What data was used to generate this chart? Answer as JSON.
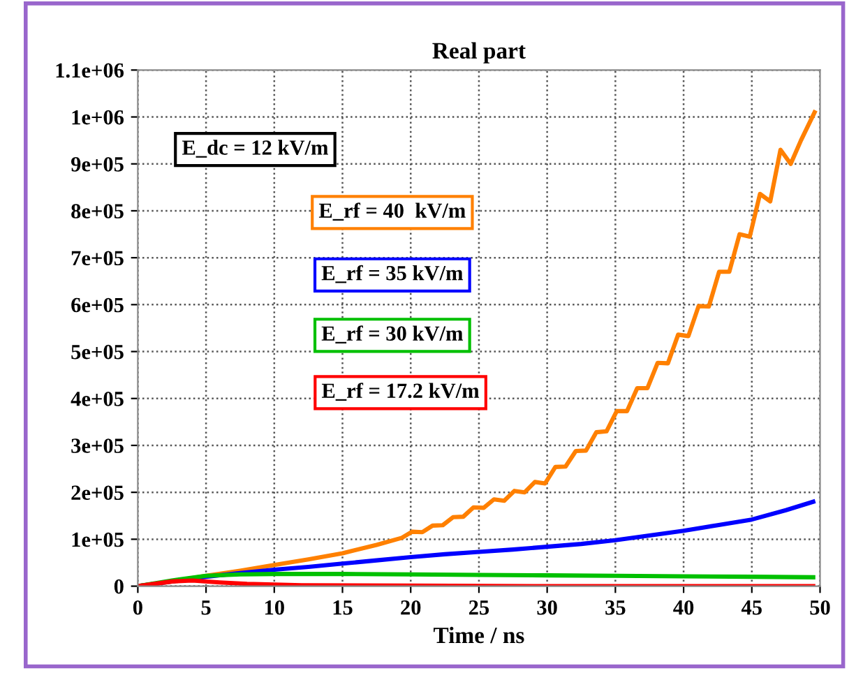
{
  "chart_data": {
    "type": "line",
    "title": "Real part",
    "xlabel": "Time / ns",
    "xlim": [
      0,
      50
    ],
    "xticks": [
      0,
      5,
      10,
      15,
      20,
      25,
      30,
      35,
      40,
      45,
      50
    ],
    "ylim": [
      0,
      1100000
    ],
    "yticks": [
      0,
      {
        "value": 100000,
        "label": "1e+05"
      },
      {
        "value": 200000,
        "label": "2e+05"
      },
      {
        "value": 300000,
        "label": "3e+05"
      },
      {
        "value": 400000,
        "label": "4e+05"
      },
      {
        "value": 500000,
        "label": "5e+05"
      },
      {
        "value": 600000,
        "label": "6e+05"
      },
      {
        "value": 700000,
        "label": "7e+05"
      },
      {
        "value": 800000,
        "label": "8e+05"
      },
      {
        "value": 900000,
        "label": "9e+05"
      },
      {
        "value": 1000000,
        "label": "1e+06"
      },
      {
        "value": 1100000,
        "label": "1.1e+06"
      }
    ],
    "grid": true,
    "line_style": "solid",
    "annotations": [
      "E_dc = 12 kV/m"
    ],
    "series": [
      {
        "name": "E_rf = 40  kV/m",
        "color": "#ff8000",
        "x": [
          0,
          2.5,
          5,
          7.5,
          10,
          12.5,
          15,
          17.5,
          19.35,
          20.1,
          20.85,
          21.6,
          22.35,
          23.1,
          23.85,
          24.6,
          25.35,
          26.1,
          26.85,
          27.6,
          28.35,
          29.1,
          29.85,
          30.6,
          31.35,
          32.1,
          32.85,
          33.6,
          34.35,
          35.1,
          35.85,
          36.6,
          37.35,
          38.1,
          38.85,
          39.6,
          40.35,
          41.1,
          41.85,
          42.6,
          43.35,
          44.1,
          44.85,
          45.6,
          46.35,
          47.1,
          47.85,
          48.6,
          49.6
        ],
        "values": [
          0,
          10000,
          22000,
          33000,
          45000,
          57000,
          70000,
          88000,
          103000,
          116000,
          115000,
          129000,
          130000,
          147000,
          148000,
          168000,
          167000,
          185000,
          182000,
          203000,
          200000,
          222000,
          219000,
          254000,
          255000,
          288000,
          289000,
          328000,
          330000,
          373000,
          373000,
          422000,
          422000,
          476000,
          475000,
          536000,
          533000,
          597000,
          596000,
          670000,
          670000,
          750000,
          745000,
          836000,
          820000,
          930000,
          900000,
          950000,
          1010000
        ]
      },
      {
        "name": "E_rf = 35 kV/m",
        "color": "#0000ff",
        "x": [
          0,
          5,
          7.5,
          10,
          12.5,
          15,
          17.5,
          20,
          22.5,
          25,
          27.5,
          30,
          32.5,
          35,
          37.5,
          40,
          42.5,
          45,
          47.5,
          49.5
        ],
        "values": [
          0,
          20000,
          28000,
          35000,
          41000,
          48000,
          55000,
          62000,
          68000,
          73000,
          78000,
          84000,
          90000,
          98000,
          108000,
          118000,
          130000,
          142000,
          162000,
          180000
        ]
      },
      {
        "name": "E_rf = 30 kV/m",
        "color": "#00c000",
        "x": [
          0,
          2.5,
          5,
          7.5,
          10,
          15,
          20,
          25,
          30,
          35,
          40,
          45,
          49.5
        ],
        "values": [
          0,
          12000,
          22000,
          25000,
          26000,
          26000,
          25000,
          24000,
          23000,
          22000,
          21000,
          20000,
          19000
        ]
      },
      {
        "name": "E_rf = 17.2 kV/m",
        "color": "#ff0000",
        "x": [
          0,
          2.5,
          4,
          6,
          8,
          12,
          20,
          30,
          49.5
        ],
        "values": [
          0,
          10000,
          12000,
          8000,
          5000,
          2000,
          1000,
          0,
          0
        ]
      }
    ]
  }
}
